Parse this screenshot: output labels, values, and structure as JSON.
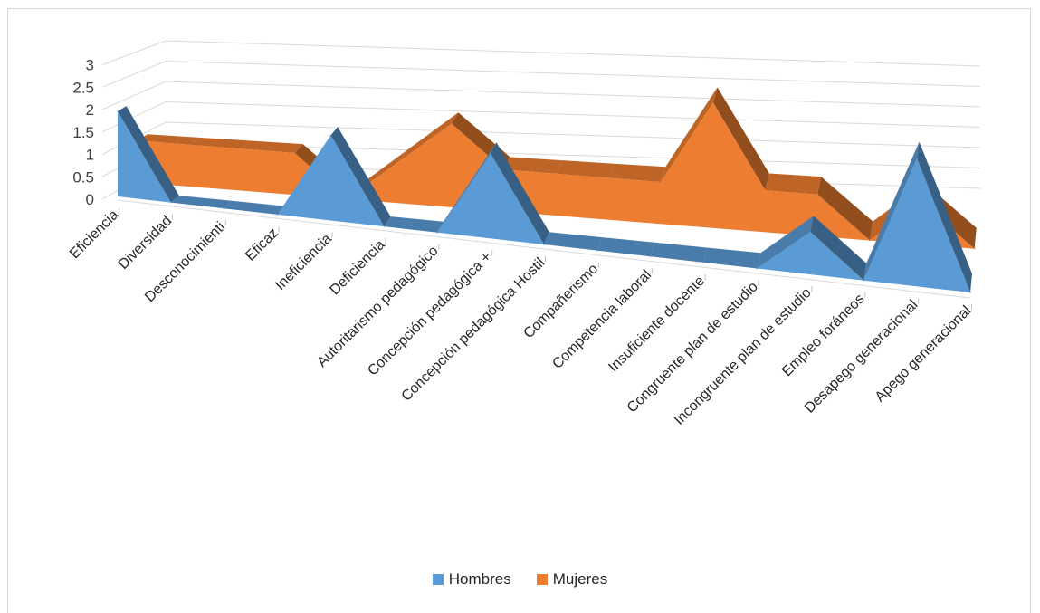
{
  "chart_data": {
    "type": "area",
    "subtype": "3d-area",
    "title": "",
    "xlabel": "",
    "ylabel": "",
    "ylim": [
      0,
      3
    ],
    "yticks": [
      "0",
      "0.5",
      "1",
      "1.5",
      "2",
      "2.5",
      "3"
    ],
    "grid": true,
    "legend_position": "bottom",
    "categories": [
      "Eficiencia",
      "Diversidad",
      "Desconocimienti",
      "Eficaz",
      "Ineficiencia",
      "Deficiencia",
      "Autoritarismo pedagógico",
      "Concepción pedagógica +",
      "Concepción pedagógica Hostil",
      "Compañerismo",
      "Competencia laboral",
      "Insuficiente docente",
      "Congruente plan de estudio",
      "Incongruente plan de estudio",
      "Empleo foráneos",
      "Desapego generacional",
      "Apego generacional"
    ],
    "series": [
      {
        "name": "Hombres",
        "color": "#5b9bd5",
        "values": [
          2,
          0,
          0,
          0,
          2,
          0,
          0,
          2,
          0,
          0,
          0,
          0,
          0,
          1,
          0,
          3,
          0
        ]
      },
      {
        "name": "Mujeres",
        "color": "#ed7d31",
        "values": [
          1,
          1,
          1,
          1,
          0,
          1,
          2,
          1,
          1,
          1,
          1,
          3,
          1,
          1,
          0,
          1,
          0
        ]
      }
    ]
  },
  "legend": {
    "hombres_label": "Hombres",
    "mujeres_label": "Mujeres"
  }
}
